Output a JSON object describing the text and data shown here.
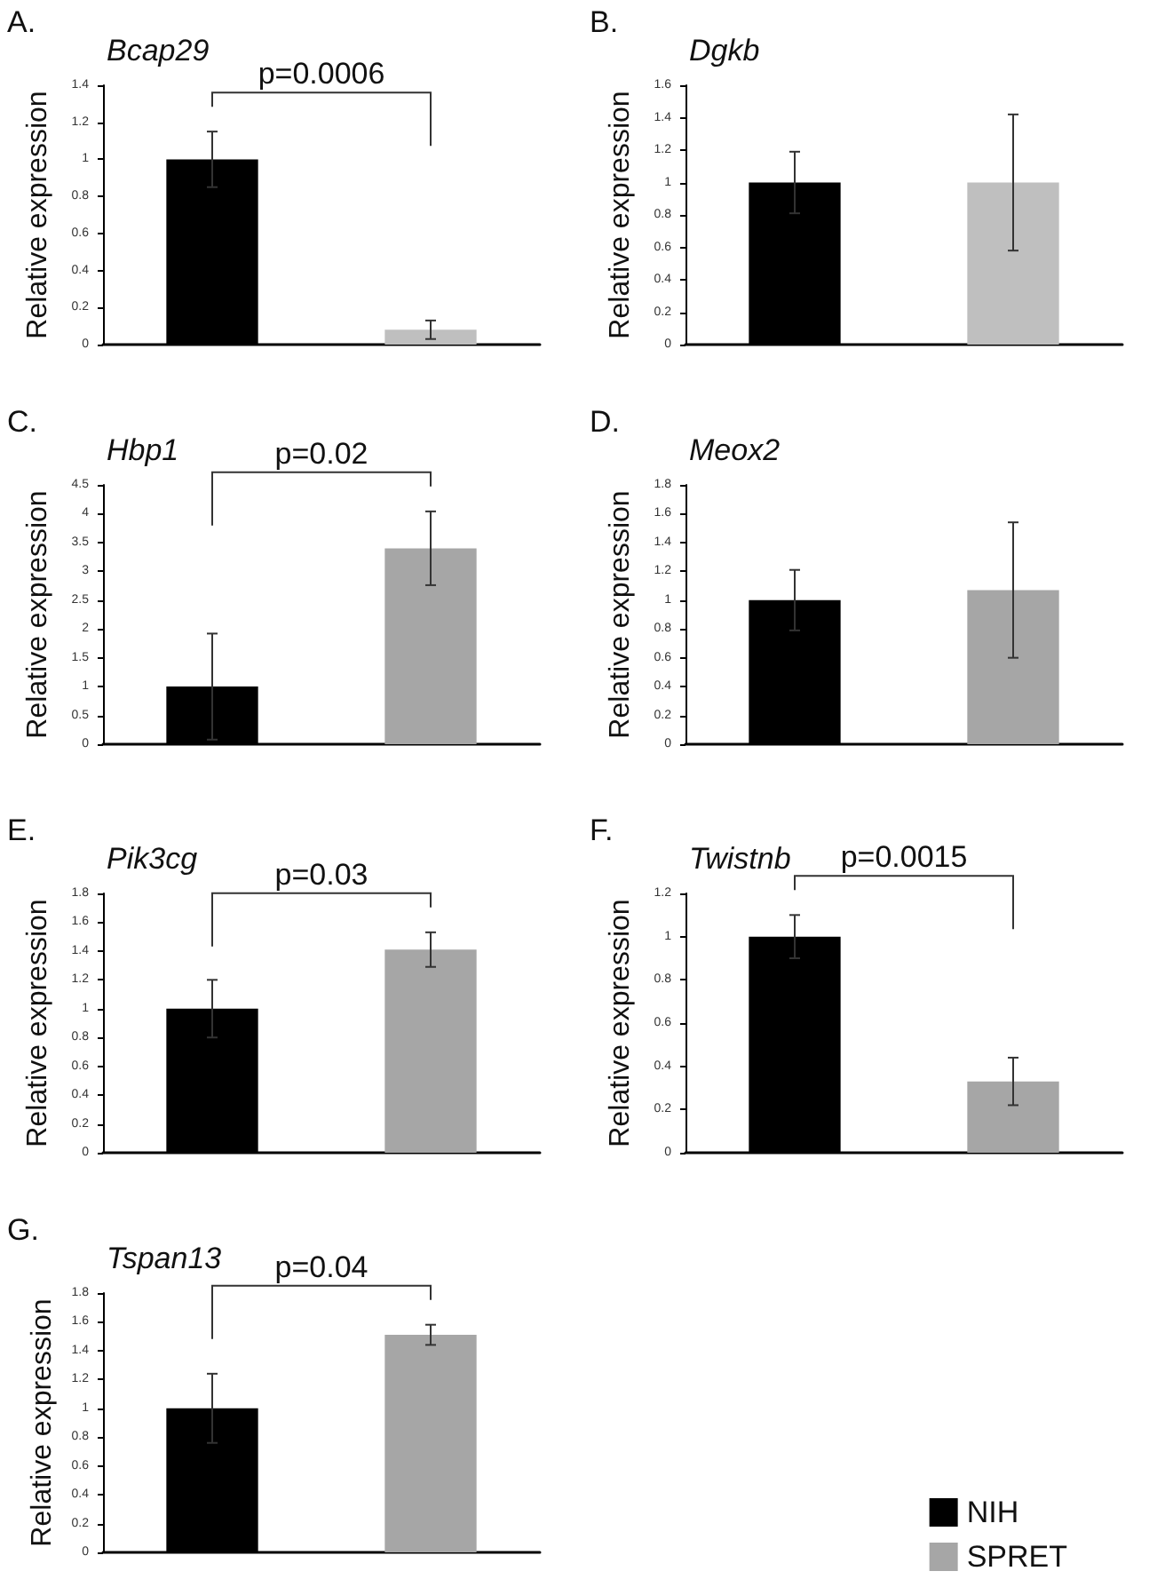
{
  "chart_data": [
    {
      "type": "bar",
      "title": "Bcap29",
      "ylabel": "Relative expression",
      "annotations": [
        "A.",
        "p=0.0006"
      ],
      "categories": [
        null,
        null
      ],
      "stacked": true,
      "ylim": [
        0,
        1.4
      ],
      "yticks": [
        0,
        0.2,
        0.4,
        0.6,
        0.8,
        1,
        1.2,
        1.4
      ],
      "grid": false,
      "legend": false,
      "series": [
        {
          "color": "#000000",
          "values": [
            1.0,
            null
          ],
          "errors": [
            0.15,
            null
          ]
        },
        {
          "color": "#bfbfbf",
          "values": [
            null,
            0.08
          ],
          "errors": [
            null,
            0.05
          ]
        }
      ]
    },
    {
      "type": "bar",
      "title": "Dgkb",
      "ylabel": "Relative expression",
      "annotations": [
        "B."
      ],
      "categories": [
        null,
        null
      ],
      "stacked": true,
      "ylim": [
        0,
        1.6
      ],
      "yticks": [
        0,
        0.2,
        0.4,
        0.6,
        0.8,
        1,
        1.2,
        1.4,
        1.6
      ],
      "grid": false,
      "legend": false,
      "series": [
        {
          "color": "#000000",
          "values": [
            1.0,
            null
          ],
          "errors": [
            0.19,
            null
          ]
        },
        {
          "color": "#bfbfbf",
          "values": [
            null,
            1.0
          ],
          "errors": [
            null,
            0.42
          ]
        }
      ]
    },
    {
      "type": "bar",
      "title": "Hbp1",
      "ylabel": "Relative expression",
      "annotations": [
        "C.",
        "p=0.02"
      ],
      "categories": [
        null,
        null
      ],
      "stacked": true,
      "ylim": [
        0,
        4.5
      ],
      "yticks": [
        0,
        0.5,
        1,
        1.5,
        2,
        2.5,
        3,
        3.5,
        4,
        4.5
      ],
      "grid": false,
      "legend": false,
      "series": [
        {
          "color": "#000000",
          "values": [
            1.0,
            null
          ],
          "errors": [
            0.92,
            null
          ]
        },
        {
          "color": "#a6a6a6",
          "values": [
            null,
            3.4
          ],
          "errors": [
            null,
            0.64
          ]
        }
      ]
    },
    {
      "type": "bar",
      "title": "Meox2",
      "ylabel": "Relative expression",
      "annotations": [
        "D."
      ],
      "categories": [
        null,
        null
      ],
      "stacked": true,
      "ylim": [
        0,
        1.8
      ],
      "yticks": [
        0,
        0.2,
        0.4,
        0.6,
        0.8,
        1,
        1.2,
        1.4,
        1.6,
        1.8
      ],
      "grid": false,
      "legend": false,
      "series": [
        {
          "color": "#000000",
          "values": [
            1.0,
            null
          ],
          "errors": [
            0.21,
            null
          ]
        },
        {
          "color": "#a6a6a6",
          "values": [
            null,
            1.07
          ],
          "errors": [
            null,
            0.47
          ]
        }
      ]
    },
    {
      "type": "bar",
      "title": "Pik3cg",
      "ylabel": "Relative expression",
      "annotations": [
        "E.",
        "p=0.03"
      ],
      "categories": [
        null,
        null
      ],
      "stacked": true,
      "ylim": [
        0,
        1.8
      ],
      "yticks": [
        0,
        0.2,
        0.4,
        0.6,
        0.8,
        1,
        1.2,
        1.4,
        1.6,
        1.8
      ],
      "grid": false,
      "legend": false,
      "series": [
        {
          "color": "#000000",
          "values": [
            1.0,
            null
          ],
          "errors": [
            0.2,
            null
          ]
        },
        {
          "color": "#a6a6a6",
          "values": [
            null,
            1.41
          ],
          "errors": [
            null,
            0.12
          ]
        }
      ]
    },
    {
      "type": "bar",
      "title": "Twistnb",
      "ylabel": "Relative expression",
      "annotations": [
        "F.",
        "p=0.0015"
      ],
      "categories": [
        null,
        null
      ],
      "stacked": true,
      "ylim": [
        0,
        1.2
      ],
      "yticks": [
        0,
        0.2,
        0.4,
        0.6,
        0.8,
        1,
        1.2
      ],
      "grid": false,
      "legend": false,
      "series": [
        {
          "color": "#000000",
          "values": [
            1.0,
            null
          ],
          "errors": [
            0.1,
            null
          ]
        },
        {
          "color": "#a6a6a6",
          "values": [
            null,
            0.33
          ],
          "errors": [
            null,
            0.11
          ]
        }
      ]
    },
    {
      "type": "bar",
      "title": "Tspan13",
      "ylabel": "Relative expression",
      "annotations": [
        "G.",
        "p=0.04"
      ],
      "categories": [
        null,
        null
      ],
      "stacked": true,
      "ylim": [
        0,
        1.8
      ],
      "yticks": [
        0,
        0.2,
        0.4,
        0.6,
        0.8,
        1,
        1.2,
        1.4,
        1.6,
        1.8
      ],
      "grid": false,
      "legend": "bottom right",
      "series": [
        {
          "name": "NIH",
          "color": "#000000",
          "values": [
            1.0,
            null
          ],
          "errors": [
            0.24,
            null
          ]
        },
        {
          "name": "SPRET",
          "color": "#a6a6a6",
          "values": [
            null,
            1.51
          ],
          "errors": [
            null,
            0.07
          ]
        }
      ]
    }
  ]
}
